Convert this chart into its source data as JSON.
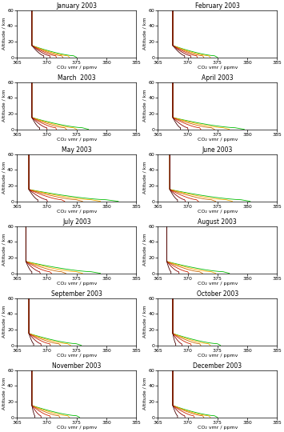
{
  "months": [
    "January 2003",
    "February 2003",
    "March  2003",
    "April 2003",
    "May 2003",
    "June 2003",
    "July 2003",
    "August 2003",
    "September 2003",
    "October 2003",
    "November 2003",
    "December 2003"
  ],
  "xlabel": "CO₂ vmr / ppmv",
  "ylabel": "Altitude / km",
  "xlim": [
    365,
    385
  ],
  "ylim": [
    0,
    60
  ],
  "xticks": [
    365,
    370,
    375,
    380,
    385
  ],
  "yticks": [
    0,
    20,
    40,
    60
  ],
  "profile_colors": [
    "#00bb00",
    "#ffaa00",
    "#cc6600",
    "#cc2200",
    "#880000",
    "#440000",
    "#0000cc",
    "#9900bb"
  ],
  "month_params": [
    {
      "strat": 367.5,
      "trop_vals": [
        374.5,
        373.5,
        372.5,
        371.5,
        370.5,
        369.5
      ],
      "surface_extra": [
        0.5,
        0.3,
        0.2,
        0.1,
        0.05,
        0.0
      ],
      "n": 6
    },
    {
      "strat": 367.5,
      "trop_vals": [
        374.5,
        373.5,
        372.5,
        371.5,
        370.5,
        369.5
      ],
      "surface_extra": [
        0.5,
        0.3,
        0.2,
        0.1,
        0.05,
        0.0
      ],
      "n": 6
    },
    {
      "strat": 367.5,
      "trop_vals": [
        376.0,
        374.5,
        373.0,
        371.5,
        370.0,
        368.8
      ],
      "surface_extra": [
        1.0,
        0.5,
        0.3,
        0.1,
        0.05,
        0.0
      ],
      "n": 6
    },
    {
      "strat": 367.5,
      "trop_vals": [
        378.0,
        376.0,
        374.0,
        372.0,
        370.0,
        368.8
      ],
      "surface_extra": [
        1.5,
        1.0,
        0.5,
        0.2,
        0.05,
        0.0
      ],
      "n": 6
    },
    {
      "strat": 367.0,
      "trop_vals": [
        380.0,
        377.5,
        375.0,
        372.5,
        370.0,
        368.5
      ],
      "surface_extra": [
        2.0,
        1.5,
        1.0,
        0.5,
        0.1,
        0.0
      ],
      "n": 6
    },
    {
      "strat": 367.0,
      "trop_vals": [
        379.0,
        376.5,
        374.0,
        371.5,
        369.5,
        368.3
      ],
      "surface_extra": [
        1.5,
        1.0,
        0.7,
        0.3,
        0.1,
        0.0
      ],
      "n": 6
    },
    {
      "strat": 366.5,
      "trop_vals": [
        377.5,
        375.0,
        372.5,
        370.5,
        368.8,
        367.5
      ],
      "surface_extra": [
        1.5,
        1.0,
        0.7,
        0.3,
        0.1,
        0.0
      ],
      "n": 6
    },
    {
      "strat": 366.5,
      "trop_vals": [
        376.0,
        374.0,
        372.0,
        370.0,
        368.5,
        367.2
      ],
      "surface_extra": [
        1.0,
        0.7,
        0.5,
        0.2,
        0.05,
        0.0
      ],
      "n": 6
    },
    {
      "strat": 367.0,
      "trop_vals": [
        375.0,
        373.5,
        372.0,
        370.5,
        369.0,
        367.8
      ],
      "surface_extra": [
        0.8,
        0.5,
        0.3,
        0.1,
        0.05,
        0.0
      ],
      "n": 6
    },
    {
      "strat": 367.5,
      "trop_vals": [
        375.0,
        373.5,
        372.0,
        370.5,
        369.0,
        368.0
      ],
      "surface_extra": [
        0.5,
        0.3,
        0.2,
        0.1,
        0.05,
        0.0
      ],
      "n": 6
    },
    {
      "strat": 367.5,
      "trop_vals": [
        375.0,
        373.5,
        372.0,
        370.5,
        369.0,
        368.0
      ],
      "surface_extra": [
        0.5,
        0.3,
        0.2,
        0.1,
        0.05,
        0.0
      ],
      "n": 6
    },
    {
      "strat": 367.5,
      "trop_vals": [
        374.5,
        373.5,
        372.5,
        371.0,
        369.5,
        368.3
      ],
      "surface_extra": [
        0.5,
        0.3,
        0.2,
        0.1,
        0.05,
        0.0
      ],
      "n": 6
    }
  ]
}
